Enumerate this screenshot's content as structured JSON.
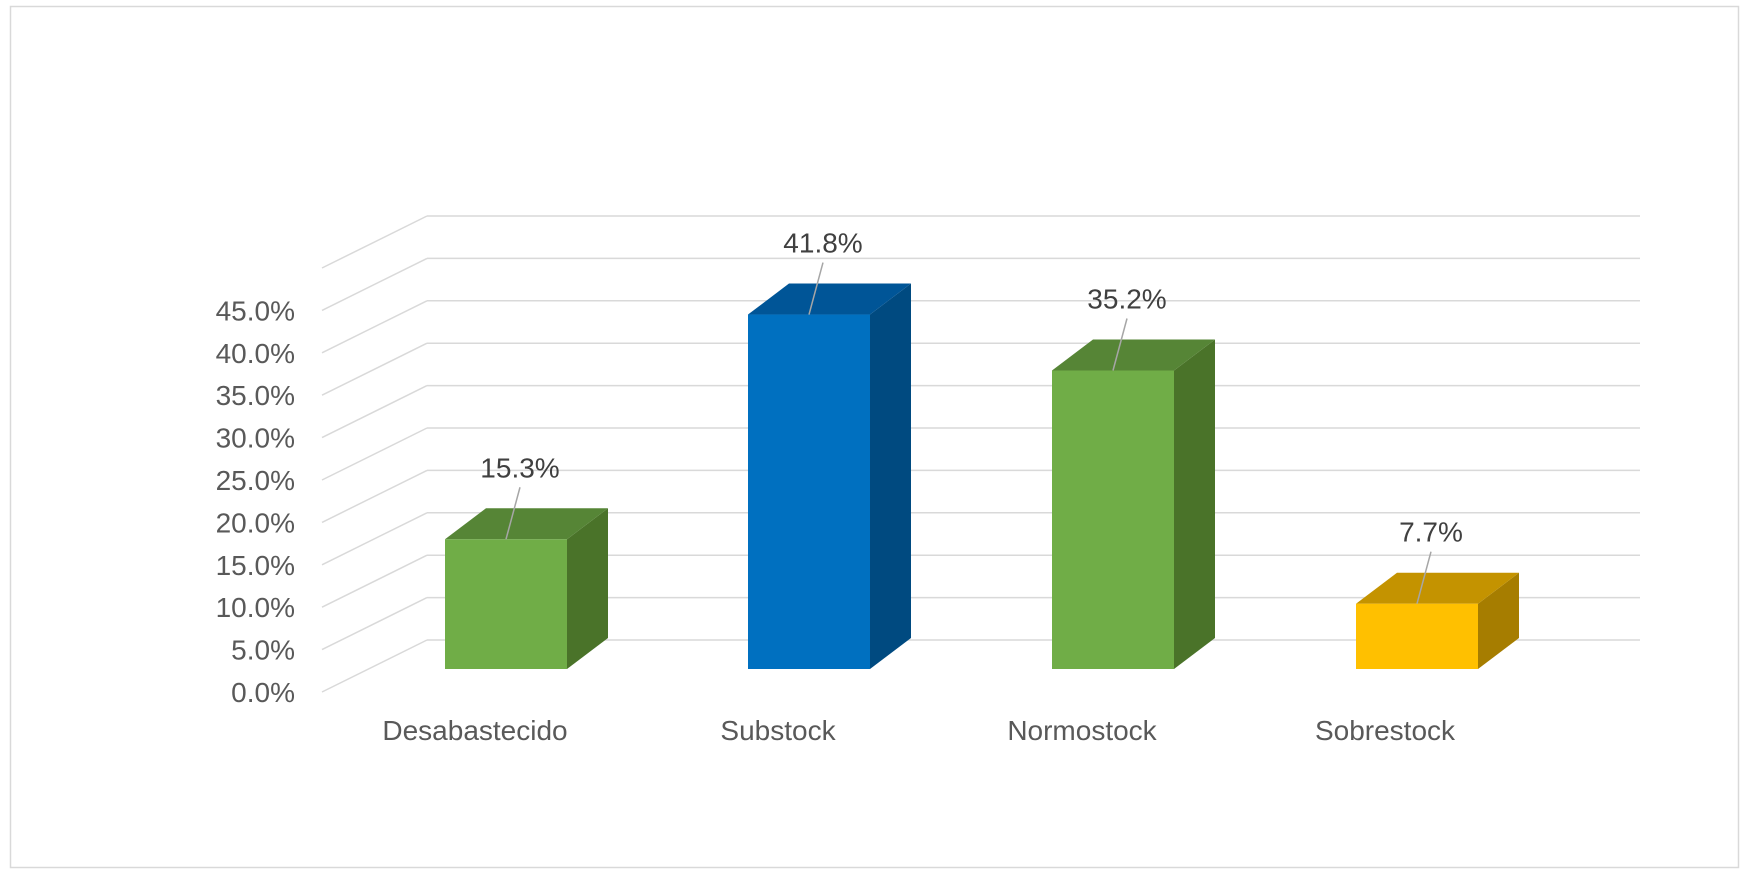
{
  "chart_data": {
    "type": "bar",
    "style": "3d-column",
    "categories": [
      "Desabastecido",
      "Substock",
      "Normostock",
      "Sobrestock"
    ],
    "values": [
      15.3,
      41.8,
      35.2,
      7.7
    ],
    "data_labels": [
      "15.3%",
      "41.8%",
      "35.2%",
      "7.7%"
    ],
    "title": "",
    "xlabel": "",
    "ylabel": "",
    "ylim": [
      0,
      45
    ],
    "yticks": [
      0,
      5,
      10,
      15,
      20,
      25,
      30,
      35,
      40,
      45
    ],
    "ytick_labels": [
      "0.0%",
      "5.0%",
      "10.0%",
      "15.0%",
      "20.0%",
      "25.0%",
      "30.0%",
      "35.0%",
      "40.0%",
      "45.0%"
    ],
    "grid": true,
    "legend": "none",
    "colors": {
      "front": [
        "#70AD47",
        "#0070C0",
        "#70AD47",
        "#FFC000"
      ],
      "side": [
        "#4A7329",
        "#004A80",
        "#4A7329",
        "#A67D00"
      ],
      "top": [
        "#568536",
        "#005597",
        "#568536",
        "#C49300"
      ],
      "grid": "#D9D9D9",
      "frame": "#D9D9D9",
      "leader": "#A6A6A6"
    }
  }
}
